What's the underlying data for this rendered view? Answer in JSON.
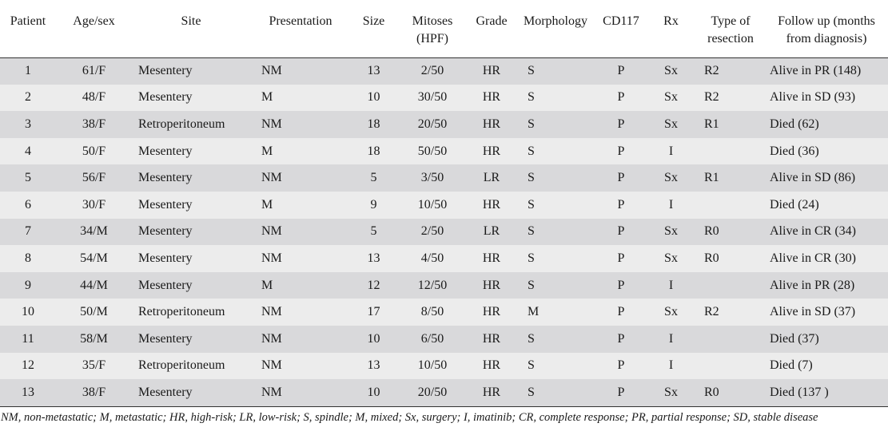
{
  "table": {
    "headers": [
      "Patient",
      "Age/sex",
      "Site",
      "Presentation",
      "Size",
      "Mitoses (HPF)",
      "Grade",
      "Morphology",
      "CD117",
      "Rx",
      "Type of resection",
      "Follow up (months from diagnosis)"
    ],
    "rows": [
      [
        "1",
        "61/F",
        "Mesentery",
        "NM",
        "13",
        "2/50",
        "HR",
        "S",
        "P",
        "Sx",
        "R2",
        "Alive in PR (148)"
      ],
      [
        "2",
        "48/F",
        "Mesentery",
        "M",
        "10",
        "30/50",
        "HR",
        "S",
        "P",
        "Sx",
        "R2",
        "Alive in SD (93)"
      ],
      [
        "3",
        "38/F",
        "Retroperitoneum",
        "NM",
        "18",
        "20/50",
        "HR",
        "S",
        "P",
        "Sx",
        "R1",
        "Died (62)"
      ],
      [
        "4",
        "50/F",
        "Mesentery",
        "M",
        "18",
        "50/50",
        "HR",
        "S",
        "P",
        "I",
        "",
        "Died (36)"
      ],
      [
        "5",
        "56/F",
        "Mesentery",
        "NM",
        "5",
        "3/50",
        "LR",
        "S",
        "P",
        "Sx",
        "R1",
        "Alive in SD (86)"
      ],
      [
        "6",
        "30/F",
        "Mesentery",
        "M",
        "9",
        "10/50",
        "HR",
        "S",
        "P",
        "I",
        "",
        "Died (24)"
      ],
      [
        "7",
        "34/M",
        "Mesentery",
        "NM",
        "5",
        "2/50",
        "LR",
        "S",
        "P",
        "Sx",
        "R0",
        "Alive in CR (34)"
      ],
      [
        "8",
        "54/M",
        "Mesentery",
        "NM",
        "13",
        "4/50",
        "HR",
        "S",
        "P",
        "Sx",
        "R0",
        "Alive in CR (30)"
      ],
      [
        "9",
        "44/M",
        "Mesentery",
        "M",
        "12",
        "12/50",
        "HR",
        "S",
        "P",
        "I",
        "",
        "Alive in PR (28)"
      ],
      [
        "10",
        "50/M",
        "Retroperitoneum",
        "NM",
        "17",
        "8/50",
        "HR",
        "M",
        "P",
        "Sx",
        "R2",
        "Alive in SD (37)"
      ],
      [
        "11",
        "58/M",
        "Mesentery",
        "NM",
        "10",
        "6/50",
        "HR",
        "S",
        "P",
        "I",
        "",
        "Died (37)"
      ],
      [
        "12",
        "35/F",
        "Retroperitoneum",
        "NM",
        "13",
        "10/50",
        "HR",
        "S",
        "P",
        "I",
        "",
        "Died (7)"
      ],
      [
        "13",
        "38/F",
        "Mesentery",
        "NM",
        "10",
        "20/50",
        "HR",
        "S",
        "P",
        "Sx",
        "R0",
        "Died (137 )"
      ]
    ],
    "footnote": "NM, non-metastatic; M, metastatic; HR, high-risk; LR, low-risk; S, spindle; M, mixed; Sx, surgery; I, imatinib; CR, complete response; PR, partial response; SD, stable disease",
    "colors": {
      "row_dark": "#d9d9db",
      "row_light": "#ececec",
      "rule": "#333333"
    }
  }
}
